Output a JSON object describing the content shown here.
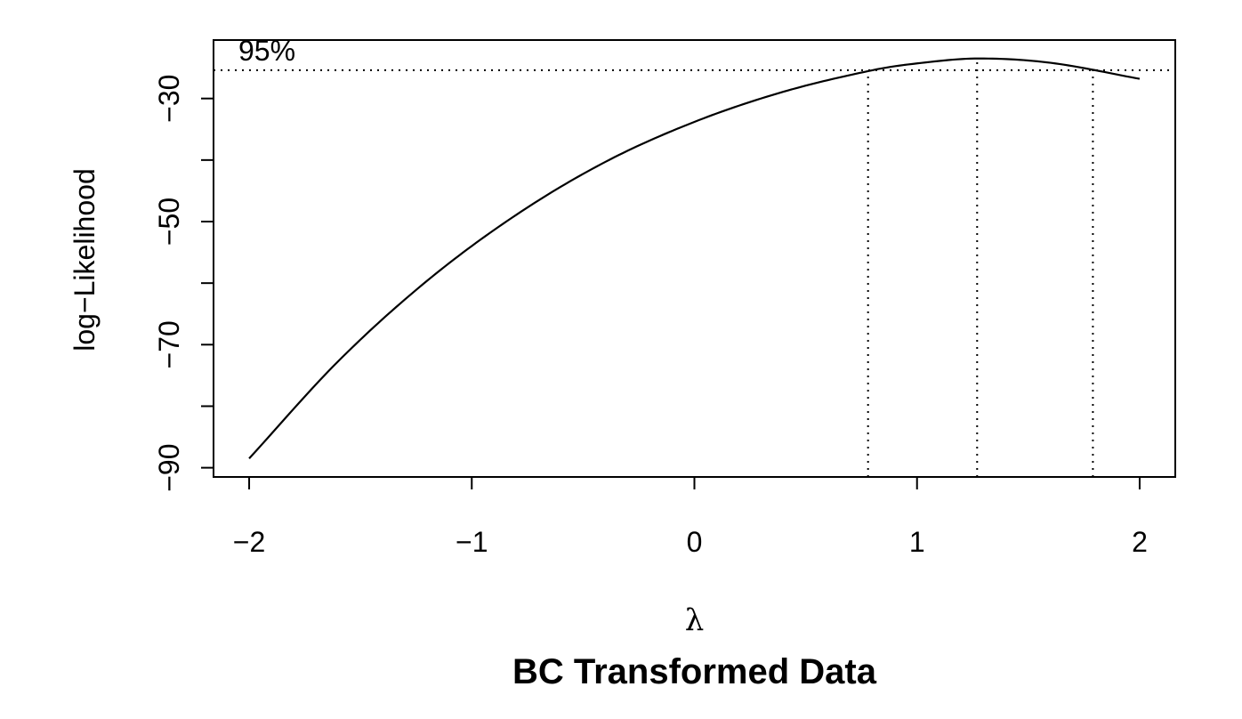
{
  "chart_data": {
    "type": "line",
    "title": "BC Transformed Data",
    "xlabel": "λ",
    "ylabel": "log−Likelihood",
    "xlim": [
      -2.16,
      2.16
    ],
    "ylim": [
      -91.5,
      -20.5
    ],
    "x_ticks": [
      -2,
      -1,
      0,
      1,
      2
    ],
    "x_tick_labels": [
      "−2",
      "−1",
      "0",
      "1",
      "2"
    ],
    "y_ticks": [
      -90,
      -80,
      -70,
      -60,
      -50,
      -40,
      -30
    ],
    "y_tick_labels": [
      "−90",
      "",
      "−70",
      "",
      "−50",
      "",
      "−30"
    ],
    "series": [
      {
        "name": "log-likelihood",
        "x": [
          -2.0,
          -1.6,
          -1.2,
          -0.8,
          -0.4,
          0.0,
          0.4,
          0.8,
          1.0,
          1.27,
          1.6,
          2.0
        ],
        "y": [
          -88.5,
          -72.7,
          -59.6,
          -48.9,
          -40.3,
          -33.8,
          -28.9,
          -25.4,
          -24.3,
          -23.5,
          -24.2,
          -26.8
        ]
      }
    ],
    "ci_level": 0.95,
    "ci_label": "95%",
    "ci_threshold_y": -25.4,
    "ci_lambda": [
      0.78,
      1.27,
      1.79
    ],
    "grid": false,
    "legend": "none"
  }
}
